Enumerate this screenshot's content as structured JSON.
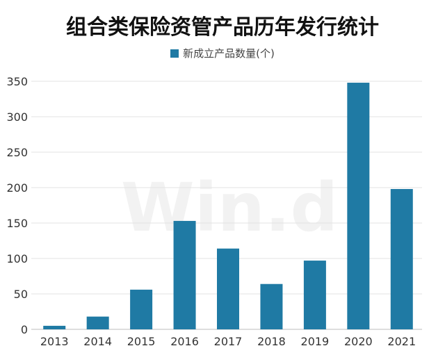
{
  "title": "组合类保险资管产品历年发行统计",
  "watermark": "Win.d",
  "colors": {
    "bar": "#1f7aa4",
    "grid": "#e3e3e3",
    "axis": "#bdbdbd"
  },
  "chart_data": {
    "type": "bar",
    "title": "组合类保险资管产品历年发行统计",
    "categories": [
      "2013",
      "2014",
      "2015",
      "2016",
      "2017",
      "2018",
      "2019",
      "2020",
      "2021"
    ],
    "series": [
      {
        "name": "新成立产品数量(个)",
        "values": [
          5,
          18,
          56,
          153,
          114,
          64,
          97,
          348,
          198
        ]
      }
    ],
    "ylim": [
      0,
      350
    ],
    "yticks": [
      0,
      50,
      100,
      150,
      200,
      250,
      300,
      350
    ],
    "grid": true,
    "legend": "top-center"
  }
}
